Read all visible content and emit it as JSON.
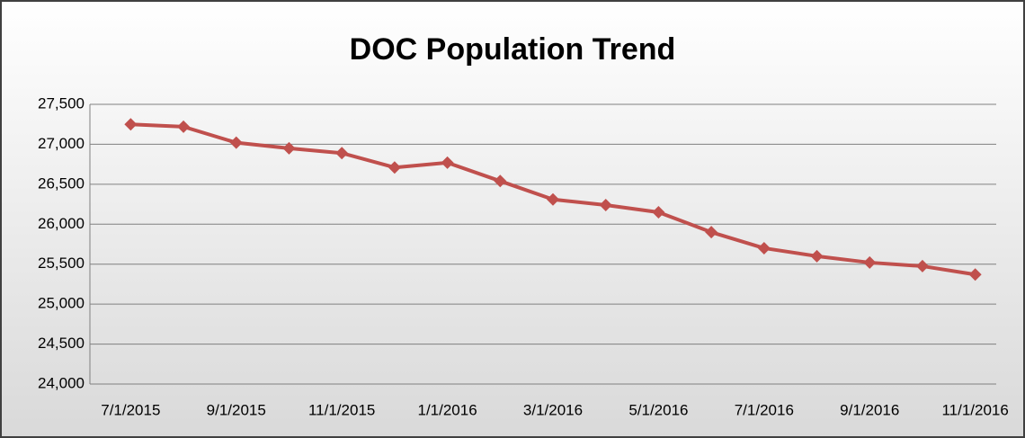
{
  "chart_data": {
    "type": "line",
    "title": "DOC Population Trend",
    "categories": [
      "7/1/2015",
      null,
      "9/1/2015",
      null,
      "11/1/2015",
      null,
      "1/1/2016",
      null,
      "3/1/2016",
      null,
      "5/1/2016",
      null,
      "7/1/2016",
      null,
      "9/1/2016",
      null,
      "11/1/2016"
    ],
    "series": [
      {
        "name": "DOC Population",
        "color": "#c0504d",
        "values": [
          27250,
          27220,
          27020,
          26950,
          26890,
          26710,
          26770,
          26540,
          26310,
          26240,
          26150,
          25900,
          25700,
          25600,
          25520,
          25475,
          25370
        ]
      }
    ],
    "ylim": [
      24000,
      27500
    ],
    "yticks": [
      {
        "value": 24000,
        "label": "24,000"
      },
      {
        "value": 24500,
        "label": "24,500"
      },
      {
        "value": 25000,
        "label": "25,000"
      },
      {
        "value": 25500,
        "label": "25,500"
      },
      {
        "value": 26000,
        "label": "26,000"
      },
      {
        "value": 26500,
        "label": "26,500"
      },
      {
        "value": 27000,
        "label": "27,000"
      },
      {
        "value": 27500,
        "label": "27,500"
      }
    ],
    "grid": true
  }
}
